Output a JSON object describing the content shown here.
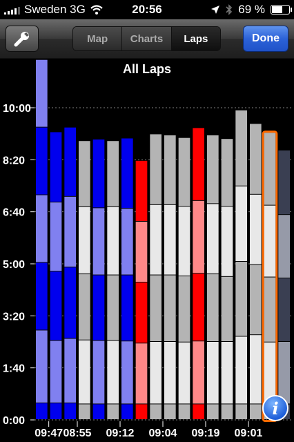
{
  "status": {
    "carrier": "Sweden 3G",
    "time": "20:56",
    "battery": "69 %",
    "battery_level": 0.69
  },
  "nav": {
    "tabs": [
      "Map",
      "Charts",
      "Laps"
    ],
    "active_tab": "Laps",
    "done_label": "Done"
  },
  "colors": {
    "blue_dark": "#0000ee",
    "blue_light": "#8080f0",
    "red_dark": "#ff0000",
    "red_light": "#ff8888",
    "gray_dark": "#b4b4b4",
    "gray_light": "#e8e8e8",
    "selected_outline": "#ff6a00",
    "last_dark": "#3a3f52",
    "last_light": "#969aa8"
  },
  "chart_data": {
    "type": "bar",
    "title": "All Laps",
    "y_tick_labels": [
      "0:00",
      "1:40",
      "3:20",
      "5:00",
      "6:40",
      "8:20",
      "10:00"
    ],
    "y_ticks_seconds": [
      0,
      100,
      200,
      300,
      400,
      500,
      600
    ],
    "ylim": [
      0,
      615
    ],
    "x_tick_labels": [
      "09:47",
      "08:55",
      "09:12",
      "09:04",
      "09:19",
      "09:01"
    ],
    "x_tick_bar_index": [
      0.5,
      2.5,
      5.5,
      8.5,
      11.5,
      14.5
    ],
    "bars": [
      {
        "color": "blue",
        "segments": [
          32,
          140,
          130,
          130,
          130,
          130
        ]
      },
      {
        "color": "blue",
        "segments": [
          32,
          120,
          133,
          133,
          135
        ]
      },
      {
        "color": "blue",
        "segments": [
          32,
          124,
          137,
          136,
          133
        ]
      },
      {
        "color": "gray",
        "segments": [
          30,
          123,
          127,
          129,
          127
        ]
      },
      {
        "color": "blue",
        "segments": [
          30,
          122,
          126,
          129,
          132
        ]
      },
      {
        "color": "gray",
        "segments": [
          30,
          122,
          126,
          131,
          127
        ]
      },
      {
        "color": "blue",
        "segments": [
          30,
          121,
          127,
          128,
          135
        ]
      },
      {
        "color": "red",
        "segments": [
          30,
          117,
          117,
          117,
          117
        ]
      },
      {
        "color": "gray",
        "segments": [
          30,
          120,
          128,
          135,
          136
        ]
      },
      {
        "color": "gray",
        "segments": [
          30,
          120,
          128,
          135,
          134
        ]
      },
      {
        "color": "gray",
        "segments": [
          30,
          119,
          127,
          134,
          132
        ]
      },
      {
        "color": "red",
        "segments": [
          30,
          121,
          130,
          140,
          140
        ]
      },
      {
        "color": "gray",
        "segments": [
          30,
          120,
          130,
          135,
          132
        ]
      },
      {
        "color": "gray",
        "segments": [
          30,
          120,
          125,
          135,
          130
        ]
      },
      {
        "color": "gray",
        "segments": [
          30,
          130,
          144,
          145,
          146
        ]
      },
      {
        "color": "gray",
        "segments": [
          30,
          133,
          135,
          135,
          136
        ]
      },
      {
        "color": "gray",
        "segments": [
          30,
          119,
          125,
          138,
          140
        ]
      },
      {
        "color": "last",
        "segments": [
          30,
          120,
          122,
          122,
          124
        ]
      }
    ],
    "selected_bar_index": 16
  }
}
